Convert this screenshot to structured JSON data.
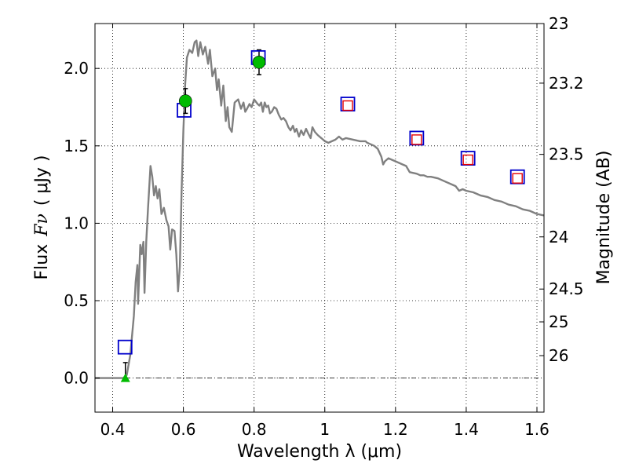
{
  "chart_data": {
    "type": "scatter",
    "xlabel": "Wavelength  λ (μm)",
    "ylabel_text": "Flux",
    "ylabel_symbol": "Fν",
    "ylabel_unit": "( μJy )",
    "y2label": "Magnitude (AB)",
    "xlim": [
      0.35,
      1.62
    ],
    "ylim": [
      -0.22,
      2.29
    ],
    "grid": true,
    "x_ticks": [
      0.4,
      0.6,
      0.8,
      1.0,
      1.2,
      1.4,
      1.6
    ],
    "x_tick_labels": [
      "0.4",
      "0.6",
      "0.8",
      "1",
      "1.2",
      "1.4",
      "1.6"
    ],
    "y_ticks": [
      0.0,
      0.5,
      1.0,
      1.5,
      2.0
    ],
    "y_tick_labels": [
      "0.0",
      "0.5",
      "1.0",
      "1.5",
      "2.0"
    ],
    "y2_ticks": [
      {
        "label": "23",
        "flux": 2.29
      },
      {
        "label": "23.2",
        "flux": 1.905
      },
      {
        "label": "23.5",
        "flux": 1.445
      },
      {
        "label": "24",
        "flux": 0.912
      },
      {
        "label": "24.5",
        "flux": 0.575
      },
      {
        "label": "25",
        "flux": 0.363
      },
      {
        "label": "26",
        "flux": 0.145
      }
    ],
    "reference_line": {
      "y": 0.0,
      "style": "dash-dot"
    },
    "series": [
      {
        "kind": "line",
        "color": "#808080",
        "points": [
          [
            0.35,
            0.0
          ],
          [
            0.43,
            0.0
          ],
          [
            0.44,
            0.02
          ],
          [
            0.45,
            0.15
          ],
          [
            0.46,
            0.4
          ],
          [
            0.465,
            0.62
          ],
          [
            0.47,
            0.73
          ],
          [
            0.472,
            0.48
          ],
          [
            0.478,
            0.86
          ],
          [
            0.482,
            0.8
          ],
          [
            0.487,
            0.88
          ],
          [
            0.49,
            0.55
          ],
          [
            0.495,
            0.88
          ],
          [
            0.5,
            1.1
          ],
          [
            0.507,
            1.37
          ],
          [
            0.512,
            1.3
          ],
          [
            0.517,
            1.18
          ],
          [
            0.522,
            1.24
          ],
          [
            0.527,
            1.16
          ],
          [
            0.532,
            1.22
          ],
          [
            0.538,
            1.06
          ],
          [
            0.545,
            1.1
          ],
          [
            0.552,
            1.02
          ],
          [
            0.558,
            0.98
          ],
          [
            0.563,
            0.83
          ],
          [
            0.568,
            0.96
          ],
          [
            0.575,
            0.95
          ],
          [
            0.58,
            0.8
          ],
          [
            0.585,
            0.56
          ],
          [
            0.59,
            0.72
          ],
          [
            0.595,
            1.2
          ],
          [
            0.6,
            1.6
          ],
          [
            0.605,
            1.9
          ],
          [
            0.61,
            2.07
          ],
          [
            0.617,
            2.12
          ],
          [
            0.625,
            2.1
          ],
          [
            0.632,
            2.17
          ],
          [
            0.637,
            2.18
          ],
          [
            0.642,
            2.08
          ],
          [
            0.648,
            2.17
          ],
          [
            0.655,
            2.09
          ],
          [
            0.662,
            2.14
          ],
          [
            0.67,
            2.03
          ],
          [
            0.675,
            2.12
          ],
          [
            0.682,
            1.95
          ],
          [
            0.69,
            2.0
          ],
          [
            0.695,
            1.86
          ],
          [
            0.7,
            1.93
          ],
          [
            0.707,
            1.76
          ],
          [
            0.713,
            1.89
          ],
          [
            0.72,
            1.66
          ],
          [
            0.725,
            1.75
          ],
          [
            0.73,
            1.62
          ],
          [
            0.737,
            1.59
          ],
          [
            0.745,
            1.78
          ],
          [
            0.755,
            1.8
          ],
          [
            0.763,
            1.74
          ],
          [
            0.77,
            1.78
          ],
          [
            0.775,
            1.72
          ],
          [
            0.78,
            1.74
          ],
          [
            0.787,
            1.77
          ],
          [
            0.793,
            1.75
          ],
          [
            0.8,
            1.8
          ],
          [
            0.81,
            1.77
          ],
          [
            0.815,
            1.76
          ],
          [
            0.82,
            1.78
          ],
          [
            0.825,
            1.72
          ],
          [
            0.83,
            1.78
          ],
          [
            0.835,
            1.75
          ],
          [
            0.84,
            1.76
          ],
          [
            0.845,
            1.71
          ],
          [
            0.85,
            1.72
          ],
          [
            0.857,
            1.75
          ],
          [
            0.863,
            1.74
          ],
          [
            0.87,
            1.7
          ],
          [
            0.877,
            1.67
          ],
          [
            0.883,
            1.68
          ],
          [
            0.89,
            1.66
          ],
          [
            0.897,
            1.62
          ],
          [
            0.903,
            1.6
          ],
          [
            0.91,
            1.63
          ],
          [
            0.915,
            1.59
          ],
          [
            0.92,
            1.61
          ],
          [
            0.927,
            1.56
          ],
          [
            0.933,
            1.6
          ],
          [
            0.94,
            1.57
          ],
          [
            0.947,
            1.61
          ],
          [
            0.953,
            1.58
          ],
          [
            0.96,
            1.55
          ],
          [
            0.965,
            1.62
          ],
          [
            0.972,
            1.59
          ],
          [
            0.98,
            1.57
          ],
          [
            0.99,
            1.55
          ],
          [
            1.0,
            1.53
          ],
          [
            1.01,
            1.52
          ],
          [
            1.02,
            1.53
          ],
          [
            1.03,
            1.54
          ],
          [
            1.04,
            1.56
          ],
          [
            1.05,
            1.54
          ],
          [
            1.06,
            1.55
          ],
          [
            1.08,
            1.54
          ],
          [
            1.1,
            1.53
          ],
          [
            1.115,
            1.53
          ],
          [
            1.12,
            1.52
          ],
          [
            1.13,
            1.51
          ],
          [
            1.14,
            1.5
          ],
          [
            1.15,
            1.48
          ],
          [
            1.16,
            1.43
          ],
          [
            1.165,
            1.38
          ],
          [
            1.17,
            1.4
          ],
          [
            1.18,
            1.42
          ],
          [
            1.2,
            1.4
          ],
          [
            1.22,
            1.38
          ],
          [
            1.23,
            1.37
          ],
          [
            1.24,
            1.33
          ],
          [
            1.26,
            1.32
          ],
          [
            1.27,
            1.31
          ],
          [
            1.28,
            1.31
          ],
          [
            1.29,
            1.3
          ],
          [
            1.3,
            1.3
          ],
          [
            1.32,
            1.29
          ],
          [
            1.34,
            1.27
          ],
          [
            1.36,
            1.25
          ],
          [
            1.37,
            1.24
          ],
          [
            1.38,
            1.21
          ],
          [
            1.39,
            1.22
          ],
          [
            1.4,
            1.21
          ],
          [
            1.42,
            1.2
          ],
          [
            1.44,
            1.18
          ],
          [
            1.46,
            1.17
          ],
          [
            1.48,
            1.15
          ],
          [
            1.5,
            1.14
          ],
          [
            1.52,
            1.12
          ],
          [
            1.54,
            1.11
          ],
          [
            1.56,
            1.09
          ],
          [
            1.58,
            1.08
          ],
          [
            1.6,
            1.06
          ],
          [
            1.62,
            1.05
          ]
        ]
      },
      {
        "kind": "open-square",
        "color": "#0000cc",
        "points": [
          [
            0.435,
            0.2
          ],
          [
            0.602,
            1.73
          ],
          [
            0.812,
            2.07
          ],
          [
            1.065,
            1.77
          ],
          [
            1.26,
            1.55
          ],
          [
            1.405,
            1.42
          ],
          [
            1.545,
            1.3
          ]
        ]
      },
      {
        "kind": "open-square",
        "color": "#e60000",
        "points": [
          [
            1.065,
            1.76
          ],
          [
            1.26,
            1.54
          ],
          [
            1.405,
            1.41
          ],
          [
            1.545,
            1.29
          ]
        ]
      },
      {
        "kind": "filled-circle",
        "color": "#00bb00",
        "points": [
          [
            0.606,
            1.79
          ],
          [
            0.814,
            2.04
          ]
        ]
      },
      {
        "kind": "filled-triangle",
        "color": "#00bb00",
        "points": [
          [
            0.436,
            0.0
          ]
        ]
      },
      {
        "kind": "errorbar",
        "color": "#000000",
        "bars": [
          {
            "x": 0.606,
            "low": 1.71,
            "high": 1.87
          },
          {
            "x": 0.814,
            "low": 1.96,
            "high": 2.12
          },
          {
            "x": 0.436,
            "low": 0.0,
            "high": 0.1
          }
        ]
      }
    ]
  }
}
